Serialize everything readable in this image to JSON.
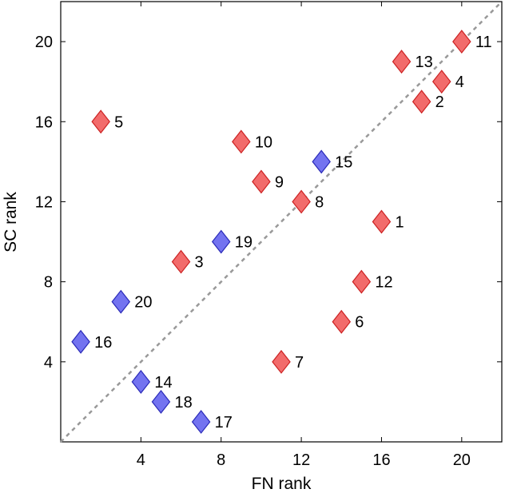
{
  "chart_data": {
    "type": "scatter",
    "title": "",
    "xlabel": "FN rank",
    "ylabel": "SC rank",
    "xlim": [
      0,
      22
    ],
    "ylim": [
      0,
      22
    ],
    "xticks": [
      4,
      8,
      12,
      16,
      20
    ],
    "yticks": [
      4,
      8,
      12,
      16,
      20
    ],
    "grid": false,
    "reference_line": {
      "style": "dashed",
      "color": "#999999",
      "from": [
        0,
        0
      ],
      "to": [
        22,
        22
      ]
    },
    "marker": "diamond",
    "series": [
      {
        "color": "#f26b6b",
        "edge": "#cc2222",
        "points": [
          {
            "label": "1",
            "x": 16,
            "y": 11
          },
          {
            "label": "2",
            "x": 18,
            "y": 17
          },
          {
            "label": "3",
            "x": 6,
            "y": 9
          },
          {
            "label": "4",
            "x": 19,
            "y": 18
          },
          {
            "label": "5",
            "x": 2,
            "y": 16
          },
          {
            "label": "6",
            "x": 14,
            "y": 6
          },
          {
            "label": "7",
            "x": 11,
            "y": 4
          },
          {
            "label": "8",
            "x": 12,
            "y": 12
          },
          {
            "label": "9",
            "x": 10,
            "y": 13
          },
          {
            "label": "10",
            "x": 9,
            "y": 15
          },
          {
            "label": "11",
            "x": 20,
            "y": 20
          },
          {
            "label": "12",
            "x": 15,
            "y": 8
          },
          {
            "label": "13",
            "x": 17,
            "y": 19
          }
        ]
      },
      {
        "color": "#7373f0",
        "edge": "#2a2ab8",
        "points": [
          {
            "label": "14",
            "x": 4,
            "y": 3
          },
          {
            "label": "15",
            "x": 13,
            "y": 14
          },
          {
            "label": "16",
            "x": 1,
            "y": 5
          },
          {
            "label": "17",
            "x": 7,
            "y": 1
          },
          {
            "label": "18",
            "x": 5,
            "y": 2
          },
          {
            "label": "19",
            "x": 8,
            "y": 10
          },
          {
            "label": "20",
            "x": 3,
            "y": 7
          }
        ]
      }
    ]
  }
}
